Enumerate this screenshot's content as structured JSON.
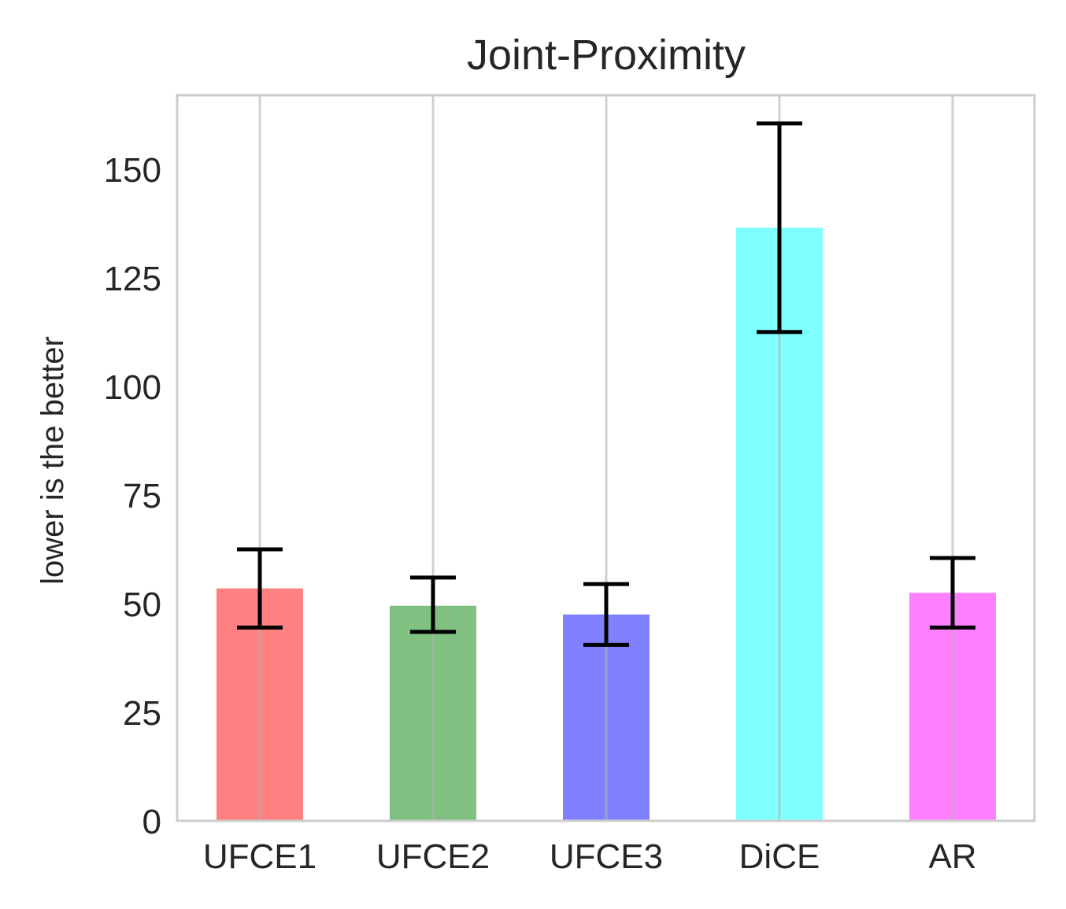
{
  "chart_data": {
    "type": "bar",
    "title": "Joint-Proximity",
    "xlabel": "",
    "ylabel": "lower is the better",
    "categories": [
      "UFCE1",
      "UFCE2",
      "UFCE3",
      "DiCE",
      "AR"
    ],
    "values": [
      53.5,
      49.5,
      47.5,
      136.5,
      52.5
    ],
    "error_low": [
      44.5,
      43.5,
      40.5,
      112.5,
      44.5
    ],
    "error_high": [
      62.5,
      56,
      54.5,
      160.5,
      60.5
    ],
    "colors": [
      "#ff8080",
      "#80c080",
      "#8080ff",
      "#80ffff",
      "#ff80ff"
    ],
    "ylim": [
      0,
      167
    ],
    "yticks": [
      0,
      25,
      50,
      75,
      100,
      125,
      150
    ],
    "grid": "vertical"
  }
}
